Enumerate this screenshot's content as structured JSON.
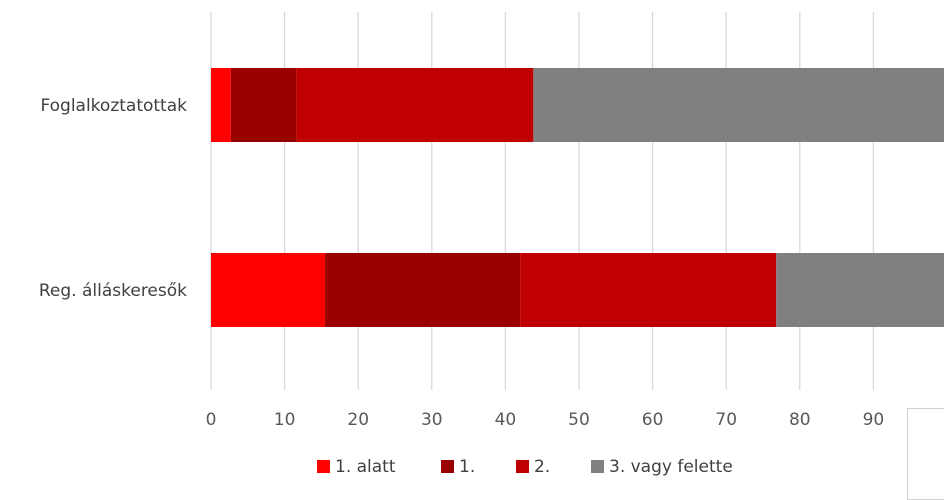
{
  "chart_data": {
    "type": "bar",
    "orientation": "horizontal",
    "stacked": true,
    "title": "",
    "xlabel": "",
    "ylabel": "",
    "categories": [
      "Foglalkoztatottak",
      "Reg. álláskeresők"
    ],
    "series": [
      {
        "name": "1. alatt",
        "color": "#ff0000",
        "values": [
          2.7,
          15.5
        ]
      },
      {
        "name": "1.",
        "color": "#990000",
        "values": [
          8.9,
          26.5
        ]
      },
      {
        "name": "2.",
        "color": "#c00000",
        "values": [
          32.2,
          34.8
        ]
      },
      {
        "name": "3. vagy felette",
        "color": "#808080",
        "values": [
          56.2,
          23.2
        ]
      }
    ],
    "xlim": [
      0,
      100
    ],
    "xticks": [
      "0",
      "10",
      "20",
      "30",
      "40",
      "50",
      "60",
      "70",
      "80",
      "90"
    ],
    "grid": true,
    "legend_position": "bottom"
  }
}
